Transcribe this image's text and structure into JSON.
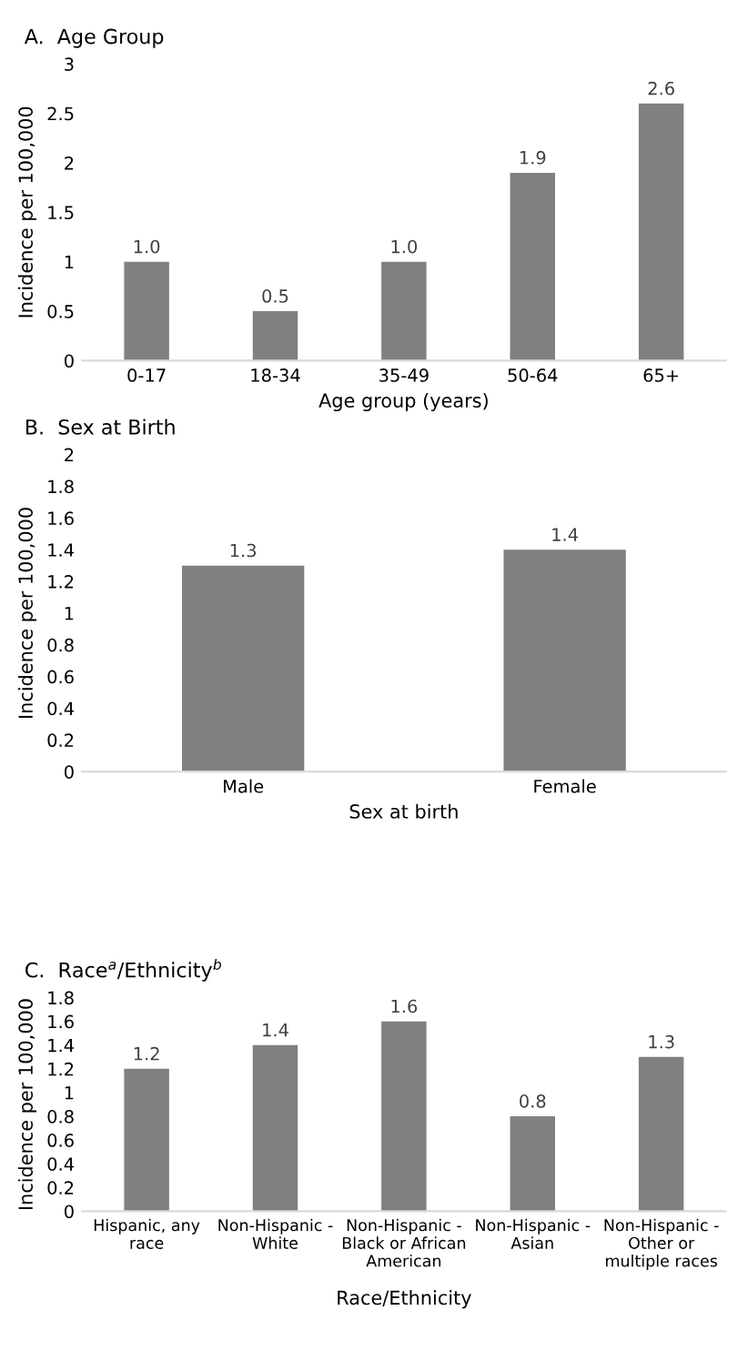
{
  "chart_data": [
    {
      "type": "bar",
      "title": "A.  Age Group",
      "xlabel": "Age group (years)",
      "ylabel": "Incidence per 100,000",
      "categories": [
        "0-17",
        "18-34",
        "35-49",
        "50-64",
        "65+"
      ],
      "values": [
        1.0,
        0.5,
        1.0,
        1.9,
        2.6
      ],
      "color": "#808080",
      "ylim": [
        0,
        3
      ],
      "yticks": [
        0,
        0.5,
        1,
        1.5,
        2,
        2.5,
        3
      ],
      "value_labels": [
        "1.0",
        "0.5",
        "1.0",
        "1.9",
        "2.6"
      ],
      "grid": false,
      "legend": false
    },
    {
      "type": "bar",
      "title": "B.  Sex at Birth",
      "xlabel": "Sex at birth",
      "ylabel": "Incidence per 100,000",
      "categories": [
        "Male",
        "Female"
      ],
      "values": [
        1.3,
        1.4
      ],
      "color": "#808080",
      "ylim": [
        0,
        2
      ],
      "yticks": [
        0,
        0.2,
        0.4,
        0.6,
        0.8,
        1,
        1.2,
        1.4,
        1.6,
        1.8,
        2
      ],
      "value_labels": [
        "1.3",
        "1.4"
      ],
      "grid": false,
      "legend": false
    },
    {
      "type": "bar",
      "title": "C.  Race$^{a}$/Ethnicity$^{b}$",
      "xlabel": "Race/Ethnicity",
      "ylabel": "Incidence per 100,000",
      "categories": [
        "Hispanic, any race",
        "Non-Hispanic - White",
        "Non-Hispanic - Black or African American",
        "Non-Hispanic - Asian",
        "Non-Hispanic - Other or multiple races"
      ],
      "values": [
        1.2,
        1.4,
        1.6,
        0.8,
        1.3
      ],
      "color": "#808080",
      "ylim": [
        0,
        1.8
      ],
      "yticks": [
        0,
        0.2,
        0.4,
        0.6,
        0.8,
        1,
        1.2,
        1.4,
        1.6,
        1.8
      ],
      "value_labels": [
        "1.2",
        "1.4",
        "1.6",
        "0.8",
        "1.3"
      ],
      "grid": false,
      "legend": false
    }
  ]
}
